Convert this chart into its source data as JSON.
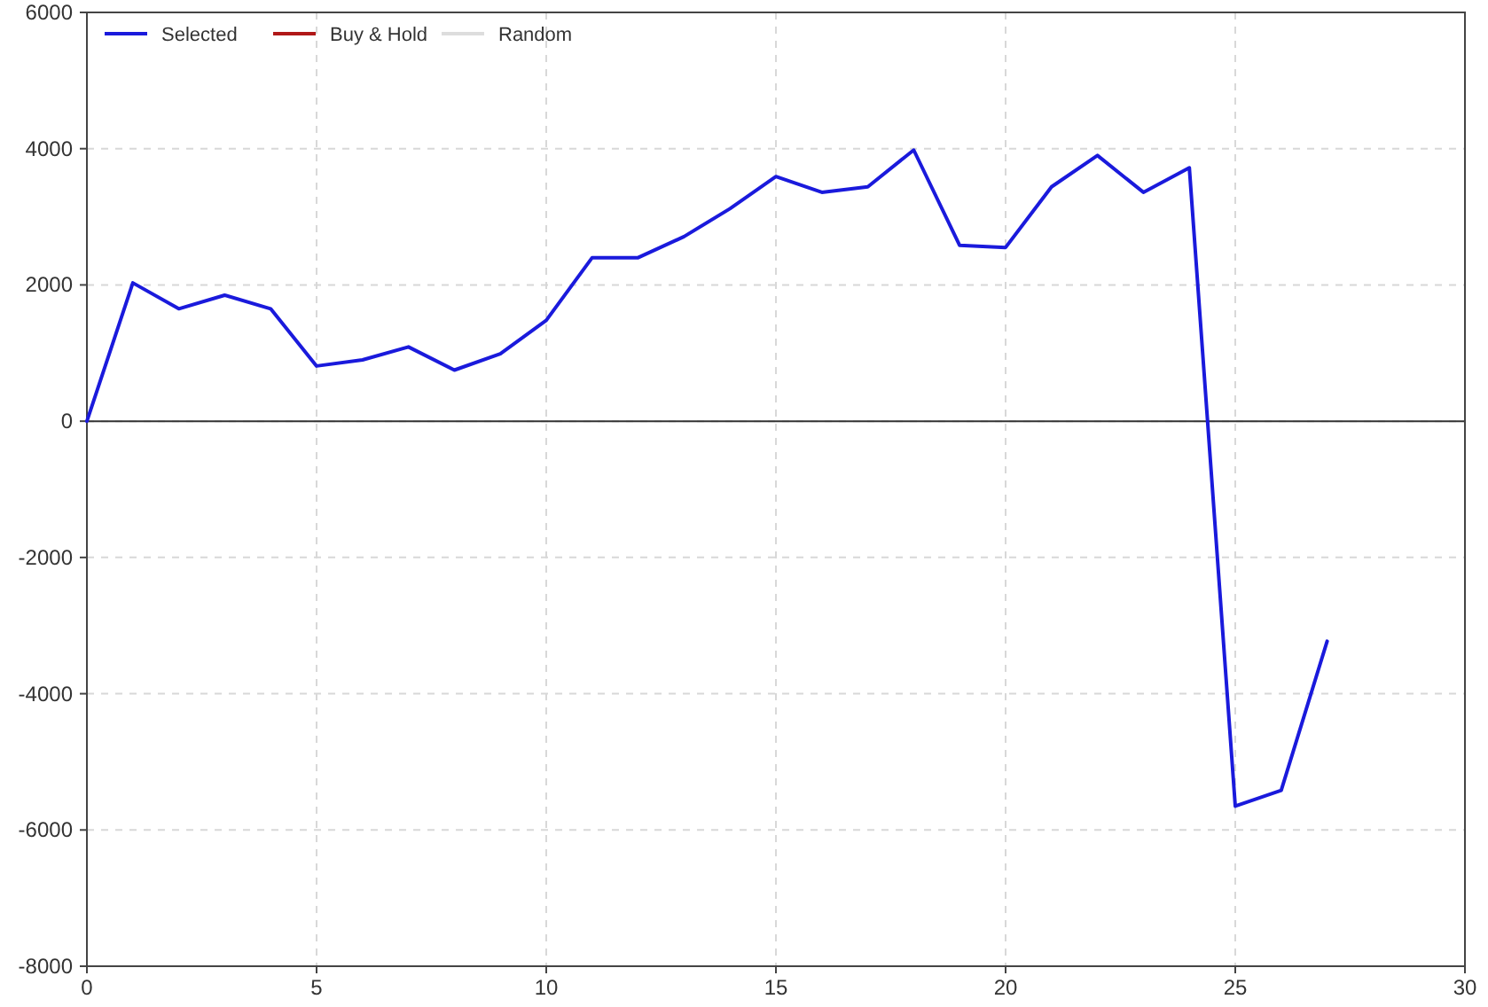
{
  "chart_data": {
    "type": "line",
    "x": [
      0,
      1,
      2,
      3,
      4,
      5,
      6,
      7,
      8,
      9,
      10,
      11,
      12,
      13,
      14,
      15,
      16,
      17,
      18,
      19,
      20,
      21,
      22,
      23,
      24,
      25,
      26,
      27
    ],
    "series": [
      {
        "name": "Selected",
        "color": "#1a1adc",
        "values": [
          0,
          2030,
          1650,
          1850,
          1650,
          810,
          900,
          1090,
          750,
          990,
          1480,
          2400,
          2400,
          2710,
          3120,
          3590,
          3360,
          3440,
          3980,
          2580,
          2550,
          3440,
          3900,
          3360,
          3720,
          -5650,
          -5420,
          -3230
        ]
      },
      {
        "name": "Buy & Hold",
        "color": "#b01818",
        "values": [
          null,
          null,
          null,
          null,
          null,
          null,
          null,
          null,
          null,
          null,
          null,
          null,
          null,
          null,
          null,
          null,
          null,
          null,
          null,
          null,
          null,
          null,
          null,
          null,
          null,
          null,
          null,
          null
        ]
      },
      {
        "name": "Random",
        "color": "#dddddd",
        "values": [
          null,
          null,
          null,
          null,
          null,
          null,
          null,
          null,
          null,
          null,
          null,
          null,
          null,
          null,
          null,
          null,
          null,
          null,
          null,
          null,
          null,
          null,
          null,
          null,
          null,
          null,
          null,
          null
        ]
      }
    ],
    "xlim": [
      0,
      30
    ],
    "xticks": [
      0,
      5,
      10,
      15,
      20,
      25,
      30
    ],
    "ylim": [
      -8000,
      6000
    ],
    "yticks": [
      -8000,
      -6000,
      -4000,
      -2000,
      0,
      2000,
      4000,
      6000
    ],
    "ref_lines": [
      {
        "axis": "y",
        "value": 0,
        "color": "#333333",
        "line_style": "solid"
      }
    ],
    "grid": true,
    "legend": "top left",
    "marker": "none",
    "line_style": "solid"
  }
}
